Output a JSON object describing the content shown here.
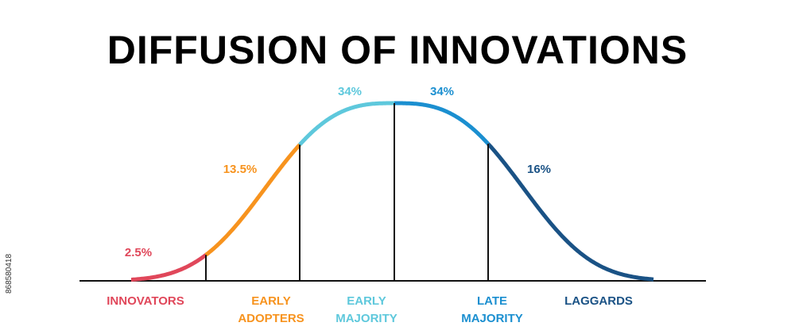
{
  "title": "DIFFUSION OF INNOVATIONS",
  "watermark_id": "868580418",
  "segments": [
    {
      "lines": [
        "INNOVATORS"
      ],
      "percent": "2.5%",
      "color": "#e0475a"
    },
    {
      "lines": [
        "EARLY",
        "ADOPTERS"
      ],
      "percent": "13.5%",
      "color": "#f7931e"
    },
    {
      "lines": [
        "EARLY",
        "MAJORITY"
      ],
      "percent": "34%",
      "color": "#5ec8dc"
    },
    {
      "lines": [
        "LATE",
        "MAJORITY"
      ],
      "percent": "34%",
      "color": "#1b8fd0"
    },
    {
      "lines": [
        "LAGGARDS"
      ],
      "percent": "16%",
      "color": "#1a5285"
    }
  ]
}
